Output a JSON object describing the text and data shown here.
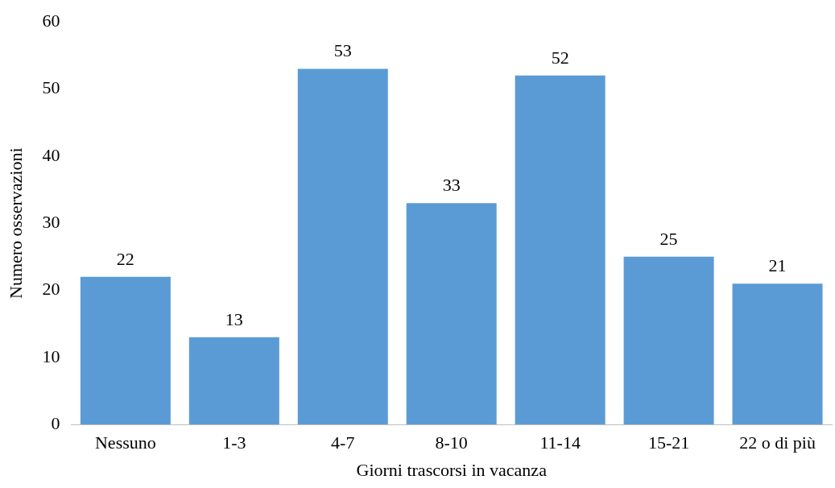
{
  "chart_data": {
    "type": "bar",
    "xlabel": "Giorni trascorsi in vacanza",
    "ylabel": "Numero osservazioni",
    "categories": [
      "Nessuno",
      "1-3",
      "4-7",
      "8-10",
      "11-14",
      "15-21",
      "22 o di più"
    ],
    "values": [
      22,
      13,
      53,
      33,
      52,
      25,
      21
    ],
    "color": "#5b9bd5",
    "ylim": [
      0,
      60
    ],
    "yticks": [
      0,
      10,
      20,
      30,
      40,
      50,
      60
    ],
    "grid": false,
    "legend": false,
    "data_labels": true
  }
}
